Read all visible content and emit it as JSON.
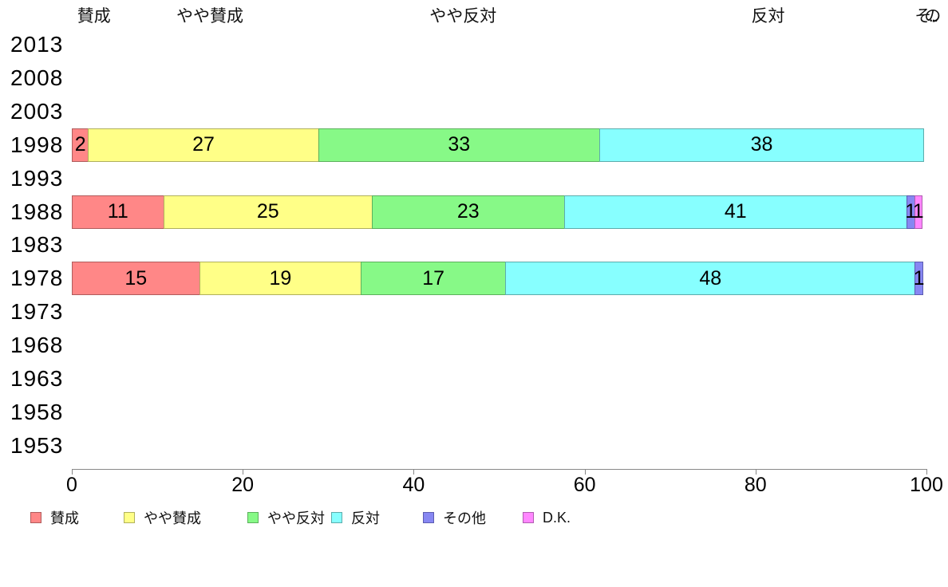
{
  "chart_data": {
    "type": "bar",
    "orientation": "horizontal",
    "stacked": true,
    "title": "",
    "xlabel": "",
    "ylabel": "",
    "xlim": [
      0,
      100
    ],
    "x_ticks": [
      0,
      20,
      40,
      60,
      80,
      100
    ],
    "grid": false,
    "legend_position": "bottom",
    "categories": [
      "2013",
      "2008",
      "2003",
      "1998",
      "1993",
      "1988",
      "1983",
      "1978",
      "1973",
      "1968",
      "1963",
      "1958",
      "1953"
    ],
    "series": [
      {
        "name": "賛成",
        "color": "#ff8787",
        "border": "#b05c5c",
        "values": [
          null,
          null,
          null,
          2,
          null,
          11,
          null,
          15,
          null,
          null,
          null,
          null,
          null
        ]
      },
      {
        "name": "やや賛成",
        "color": "#ffff87",
        "border": "#b0b05c",
        "values": [
          null,
          null,
          null,
          27,
          null,
          25,
          null,
          19,
          null,
          null,
          null,
          null,
          null
        ]
      },
      {
        "name": "やや反対",
        "color": "#87f987",
        "border": "#5cb05c",
        "values": [
          null,
          null,
          null,
          33,
          null,
          23,
          null,
          17,
          null,
          null,
          null,
          null,
          null
        ]
      },
      {
        "name": "反対",
        "color": "#87ffff",
        "border": "#5cacac",
        "values": [
          null,
          null,
          null,
          38,
          null,
          41,
          null,
          48,
          null,
          null,
          null,
          null,
          null
        ]
      },
      {
        "name": "その他",
        "color": "#8787f2",
        "border": "#5c5cb0",
        "values": [
          null,
          null,
          null,
          0,
          null,
          1,
          null,
          1,
          null,
          null,
          null,
          null,
          null
        ]
      },
      {
        "name": "D.K.",
        "color": "#ff87ff",
        "border": "#b05cb0",
        "values": [
          null,
          null,
          null,
          0,
          null,
          1,
          null,
          0,
          null,
          null,
          null,
          null,
          null
        ]
      }
    ],
    "column_headers": [
      "賛成",
      "やや賛成",
      "やや反対",
      "反対",
      "その..."
    ],
    "legend_labels": [
      "賛成",
      "やや賛成",
      "やや反対",
      "反対",
      "その他",
      "D.K."
    ]
  }
}
